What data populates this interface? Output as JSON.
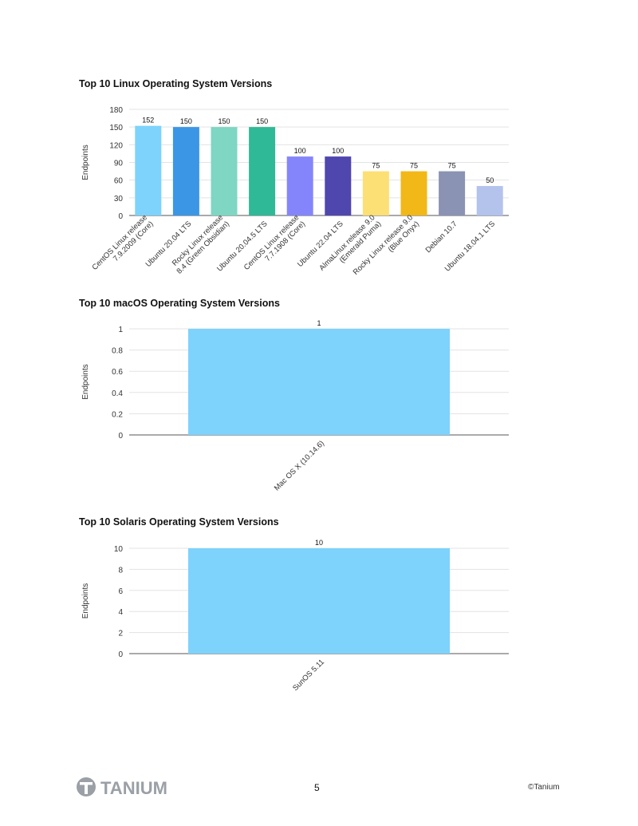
{
  "chart_data": [
    {
      "type": "bar",
      "title": "Top 10 Linux Operating System Versions",
      "ylabel": "Endpoints",
      "xlabel": "",
      "ylim": [
        0,
        180
      ],
      "yticks": [
        0,
        30,
        60,
        90,
        120,
        150,
        180
      ],
      "ytick_labels": [
        "0",
        "30",
        "60",
        "90",
        "120",
        "150",
        "180"
      ],
      "grid": true,
      "categories": [
        [
          "CentOS Linux release",
          "7.9.2009 (Core)"
        ],
        [
          "Ubuntu 20.04 LTS"
        ],
        [
          "Rocky Linux release",
          "8.4 (Green Obsidian)"
        ],
        [
          "Ubuntu 20.04.5 LTS"
        ],
        [
          "CentOS Linux release",
          "7.7.1908 (Core)"
        ],
        [
          "Ubuntu 22.04 LTS"
        ],
        [
          "AlmaLinux release 9.0",
          "(Emerald Puma)"
        ],
        [
          "Rocky Linux release 9.0",
          "(Blue Onyx)"
        ],
        [
          "Debian 10.7"
        ],
        [
          "Ubuntu 18.04.1 LTS"
        ]
      ],
      "values": [
        152,
        150,
        150,
        150,
        100,
        100,
        75,
        75,
        75,
        50
      ],
      "value_labels": [
        "152",
        "150",
        "150",
        "150",
        "100",
        "100",
        "75",
        "75",
        "75",
        "50"
      ],
      "colors": [
        "#7dd3fc",
        "#3b96e6",
        "#7fd6c2",
        "#2fb996",
        "#8585fb",
        "#4f46ae",
        "#fde075",
        "#f2b817",
        "#8a93b3",
        "#b3c3ec"
      ]
    },
    {
      "type": "bar",
      "title": "Top 10 macOS Operating System Versions",
      "ylabel": "Endpoints",
      "xlabel": "",
      "ylim": [
        0,
        1
      ],
      "yticks": [
        0,
        0.2,
        0.4,
        0.6,
        0.8,
        1
      ],
      "ytick_labels": [
        "0",
        "0.2",
        "0.4",
        "0.6",
        "0.8",
        "1"
      ],
      "grid": true,
      "categories": [
        [
          "Mac OS X (10.14.6)"
        ]
      ],
      "values": [
        1
      ],
      "value_labels": [
        "1"
      ],
      "colors": [
        "#7dd3fc"
      ]
    },
    {
      "type": "bar",
      "title": "Top 10 Solaris Operating System Versions",
      "ylabel": "Endpoints",
      "xlabel": "",
      "ylim": [
        0,
        10
      ],
      "yticks": [
        0,
        2,
        4,
        6,
        8,
        10
      ],
      "ytick_labels": [
        "0",
        "2",
        "4",
        "6",
        "8",
        "10"
      ],
      "grid": true,
      "categories": [
        [
          "SunOS 5.11"
        ]
      ],
      "values": [
        10
      ],
      "value_labels": [
        "10"
      ],
      "colors": [
        "#7dd3fc"
      ]
    }
  ],
  "footer": {
    "logo_text": "TANIUM",
    "page_number": "5",
    "copyright": "©Tanium",
    "logo_color": "#9aa0a6"
  }
}
